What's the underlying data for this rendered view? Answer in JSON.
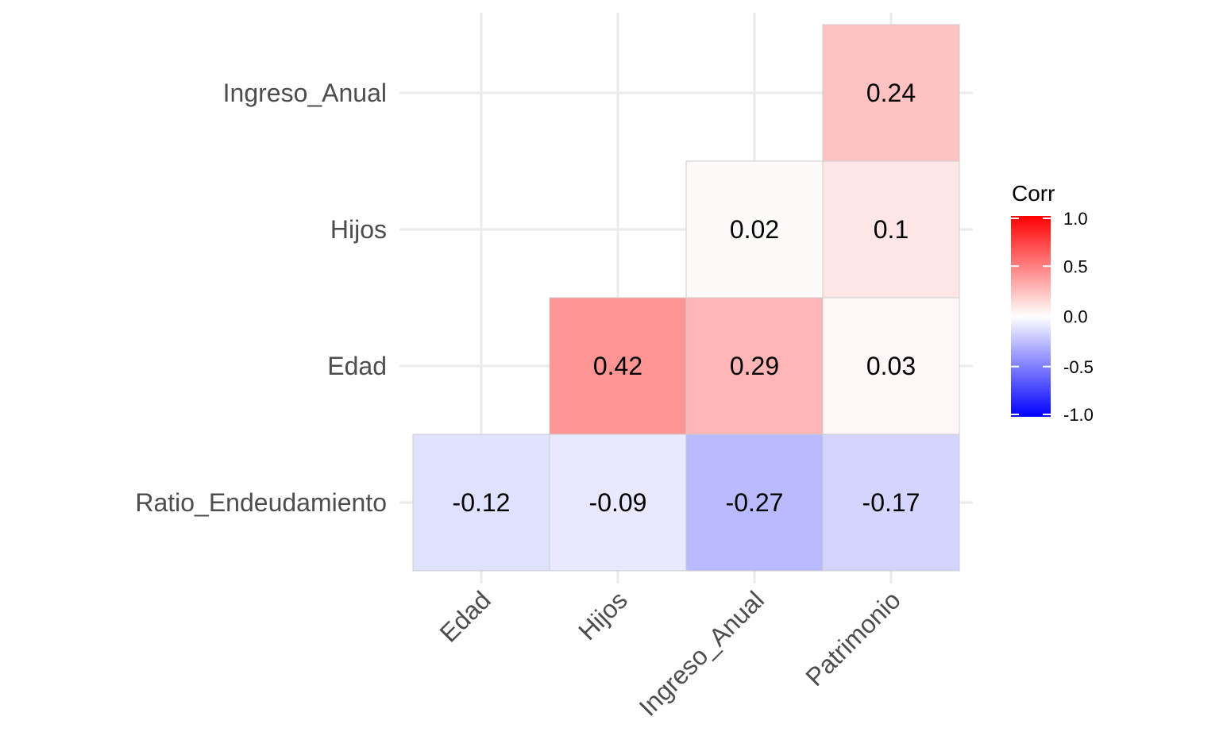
{
  "chart_data": {
    "type": "heatmap",
    "x_categories": [
      "Edad",
      "Hijos",
      "Ingreso_Anual",
      "Patrimonio"
    ],
    "y_categories": [
      "Ratio_Endeudamiento",
      "Edad",
      "Hijos",
      "Ingreso_Anual"
    ],
    "cells": [
      {
        "x": "Edad",
        "y": "Ratio_Endeudamiento",
        "value": -0.12,
        "label": "-0.12"
      },
      {
        "x": "Hijos",
        "y": "Ratio_Endeudamiento",
        "value": -0.09,
        "label": "-0.09"
      },
      {
        "x": "Ingreso_Anual",
        "y": "Ratio_Endeudamiento",
        "value": -0.27,
        "label": "-0.27"
      },
      {
        "x": "Patrimonio",
        "y": "Ratio_Endeudamiento",
        "value": -0.17,
        "label": "-0.17"
      },
      {
        "x": "Hijos",
        "y": "Edad",
        "value": 0.42,
        "label": "0.42"
      },
      {
        "x": "Ingreso_Anual",
        "y": "Edad",
        "value": 0.29,
        "label": "0.29"
      },
      {
        "x": "Patrimonio",
        "y": "Edad",
        "value": 0.03,
        "label": "0.03"
      },
      {
        "x": "Ingreso_Anual",
        "y": "Hijos",
        "value": 0.02,
        "label": "0.02"
      },
      {
        "x": "Patrimonio",
        "y": "Hijos",
        "value": 0.1,
        "label": "0.1"
      },
      {
        "x": "Patrimonio",
        "y": "Ingreso_Anual",
        "value": 0.24,
        "label": "0.24"
      }
    ],
    "legend": {
      "title": "Corr",
      "placement": "right",
      "range": [
        -1.0,
        1.0
      ],
      "ticks": [
        {
          "value": 1.0,
          "label": "1.0"
        },
        {
          "value": 0.5,
          "label": "0.5"
        },
        {
          "value": 0.0,
          "label": "0.0"
        },
        {
          "value": -0.5,
          "label": "-0.5"
        },
        {
          "value": -1.0,
          "label": "-1.0"
        }
      ]
    },
    "colors": {
      "low": "#0000ff",
      "mid": "#ffffff",
      "high": "#ff0000",
      "grid": "#ebebeb"
    },
    "grid": true
  }
}
